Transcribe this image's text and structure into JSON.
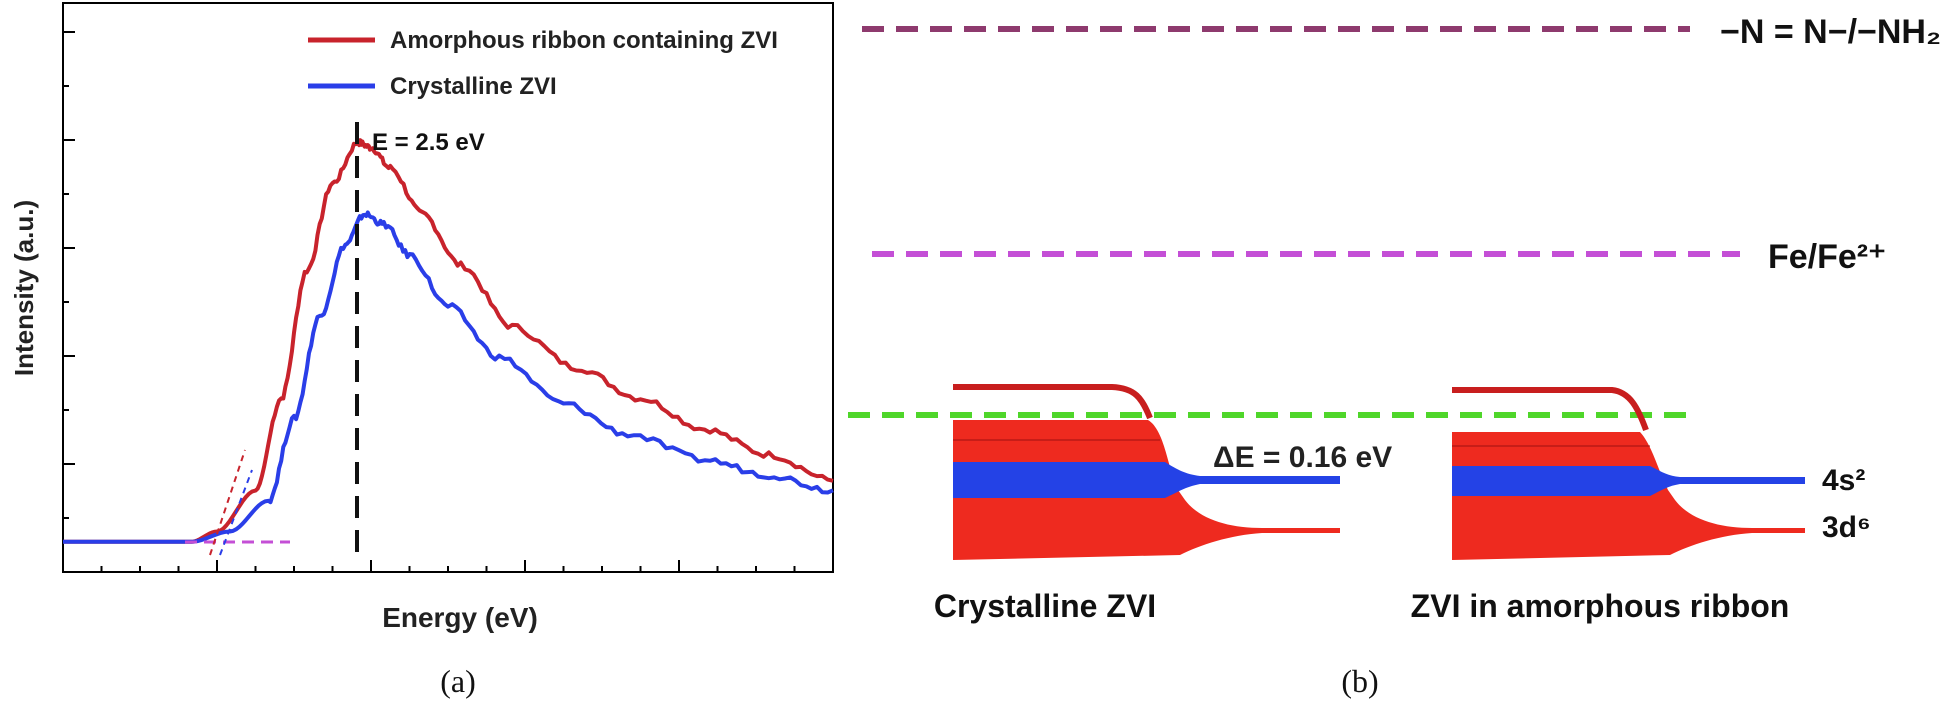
{
  "panel_a": {
    "caption": "(a)",
    "chart_data": {
      "type": "line",
      "xlabel": "Energy (eV)",
      "ylabel": "Intensity (a.u.)",
      "annotation": "E = 2.5 eV",
      "series": [
        {
          "name": "Amorphous ribbon containing ZVI",
          "color": "#c8232c",
          "points": [
            [
              0,
              0.02
            ],
            [
              1,
              0.02
            ],
            [
              1.2,
              0.04
            ],
            [
              1.5,
              0.12
            ],
            [
              1.7,
              0.3
            ],
            [
              1.9,
              0.55
            ],
            [
              2.1,
              0.72
            ],
            [
              2.3,
              0.8
            ],
            [
              2.4,
              0.79
            ],
            [
              2.55,
              0.75
            ],
            [
              2.8,
              0.66
            ],
            [
              3.1,
              0.56
            ],
            [
              3.5,
              0.44
            ],
            [
              4,
              0.36
            ],
            [
              4.5,
              0.3
            ],
            [
              5,
              0.24
            ],
            [
              5.5,
              0.19
            ],
            [
              6,
              0.14
            ]
          ]
        },
        {
          "name": "Crystalline ZVI",
          "color": "#2a3ee8",
          "points": [
            [
              0,
              0.02
            ],
            [
              1,
              0.02
            ],
            [
              1.3,
              0.04
            ],
            [
              1.6,
              0.1
            ],
            [
              1.8,
              0.26
            ],
            [
              2,
              0.46
            ],
            [
              2.2,
              0.6
            ],
            [
              2.35,
              0.66
            ],
            [
              2.5,
              0.64
            ],
            [
              2.7,
              0.58
            ],
            [
              3,
              0.48
            ],
            [
              3.4,
              0.38
            ],
            [
              3.9,
              0.29
            ],
            [
              4.4,
              0.23
            ],
            [
              5,
              0.18
            ],
            [
              5.5,
              0.15
            ],
            [
              6,
              0.12
            ]
          ]
        }
      ]
    }
  },
  "panel_b": {
    "caption": "(b)",
    "levels": [
      {
        "label": "−N = N−/−NH₂",
        "color": "#8e3a6e"
      },
      {
        "label": "Fe/Fe²⁺",
        "color": "#c44fd6"
      },
      {
        "label": "",
        "color": "#4fd62a"
      }
    ],
    "delta_e_label": "ΔE = 0.16 eV",
    "orbital_4s": "4s²",
    "orbital_3d": "3d⁶",
    "left_title": "Crystalline ZVI",
    "right_title": "ZVI in amorphous ribbon"
  },
  "colors": {
    "band_red": "#ee2a1f",
    "band_blue": "#2442e6"
  }
}
